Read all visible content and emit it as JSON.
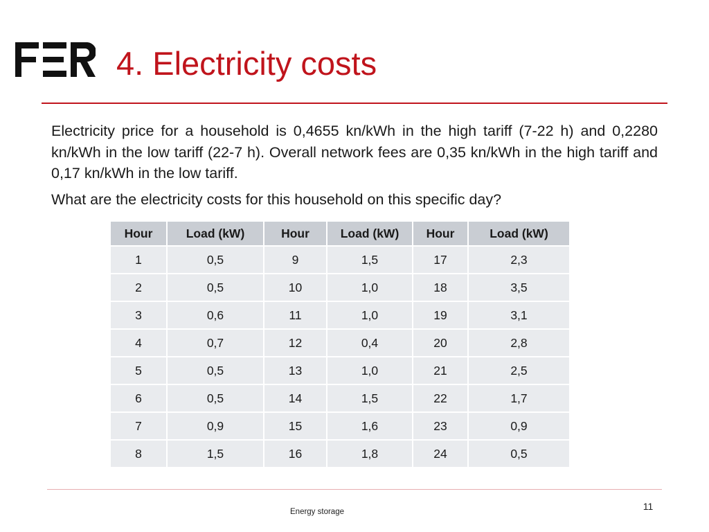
{
  "slide": {
    "title": "4. Electricity costs",
    "paragraph": "Electricity price for a household is 0,4655 kn/kWh in the high tariff (7-22 h) and 0,2280 kn/kWh in the low tariff (22-7 h). Overall network fees are 0,35 kn/kWh in the high tariff and 0,17 kn/kWh in the low tariff.",
    "question": "What are the electricity costs for this household on this specific day?",
    "footer": "Energy storage",
    "page_number": "11",
    "accent_color": "#c0141c"
  },
  "logo": {
    "icon": "fer-logo-icon"
  },
  "table": {
    "headers": [
      "Hour",
      "Load (kW)",
      "Hour",
      "Load (kW)",
      "Hour",
      "Load (kW)"
    ],
    "rows": [
      [
        "1",
        "0,5",
        "9",
        "1,5",
        "17",
        "2,3"
      ],
      [
        "2",
        "0,5",
        "10",
        "1,0",
        "18",
        "3,5"
      ],
      [
        "3",
        "0,6",
        "11",
        "1,0",
        "19",
        "3,1"
      ],
      [
        "4",
        "0,7",
        "12",
        "0,4",
        "20",
        "2,8"
      ],
      [
        "5",
        "0,5",
        "13",
        "1,0",
        "21",
        "2,5"
      ],
      [
        "6",
        "0,5",
        "14",
        "1,5",
        "22",
        "1,7"
      ],
      [
        "7",
        "0,9",
        "15",
        "1,6",
        "23",
        "0,9"
      ],
      [
        "8",
        "1,5",
        "16",
        "1,8",
        "24",
        "0,5"
      ]
    ]
  }
}
